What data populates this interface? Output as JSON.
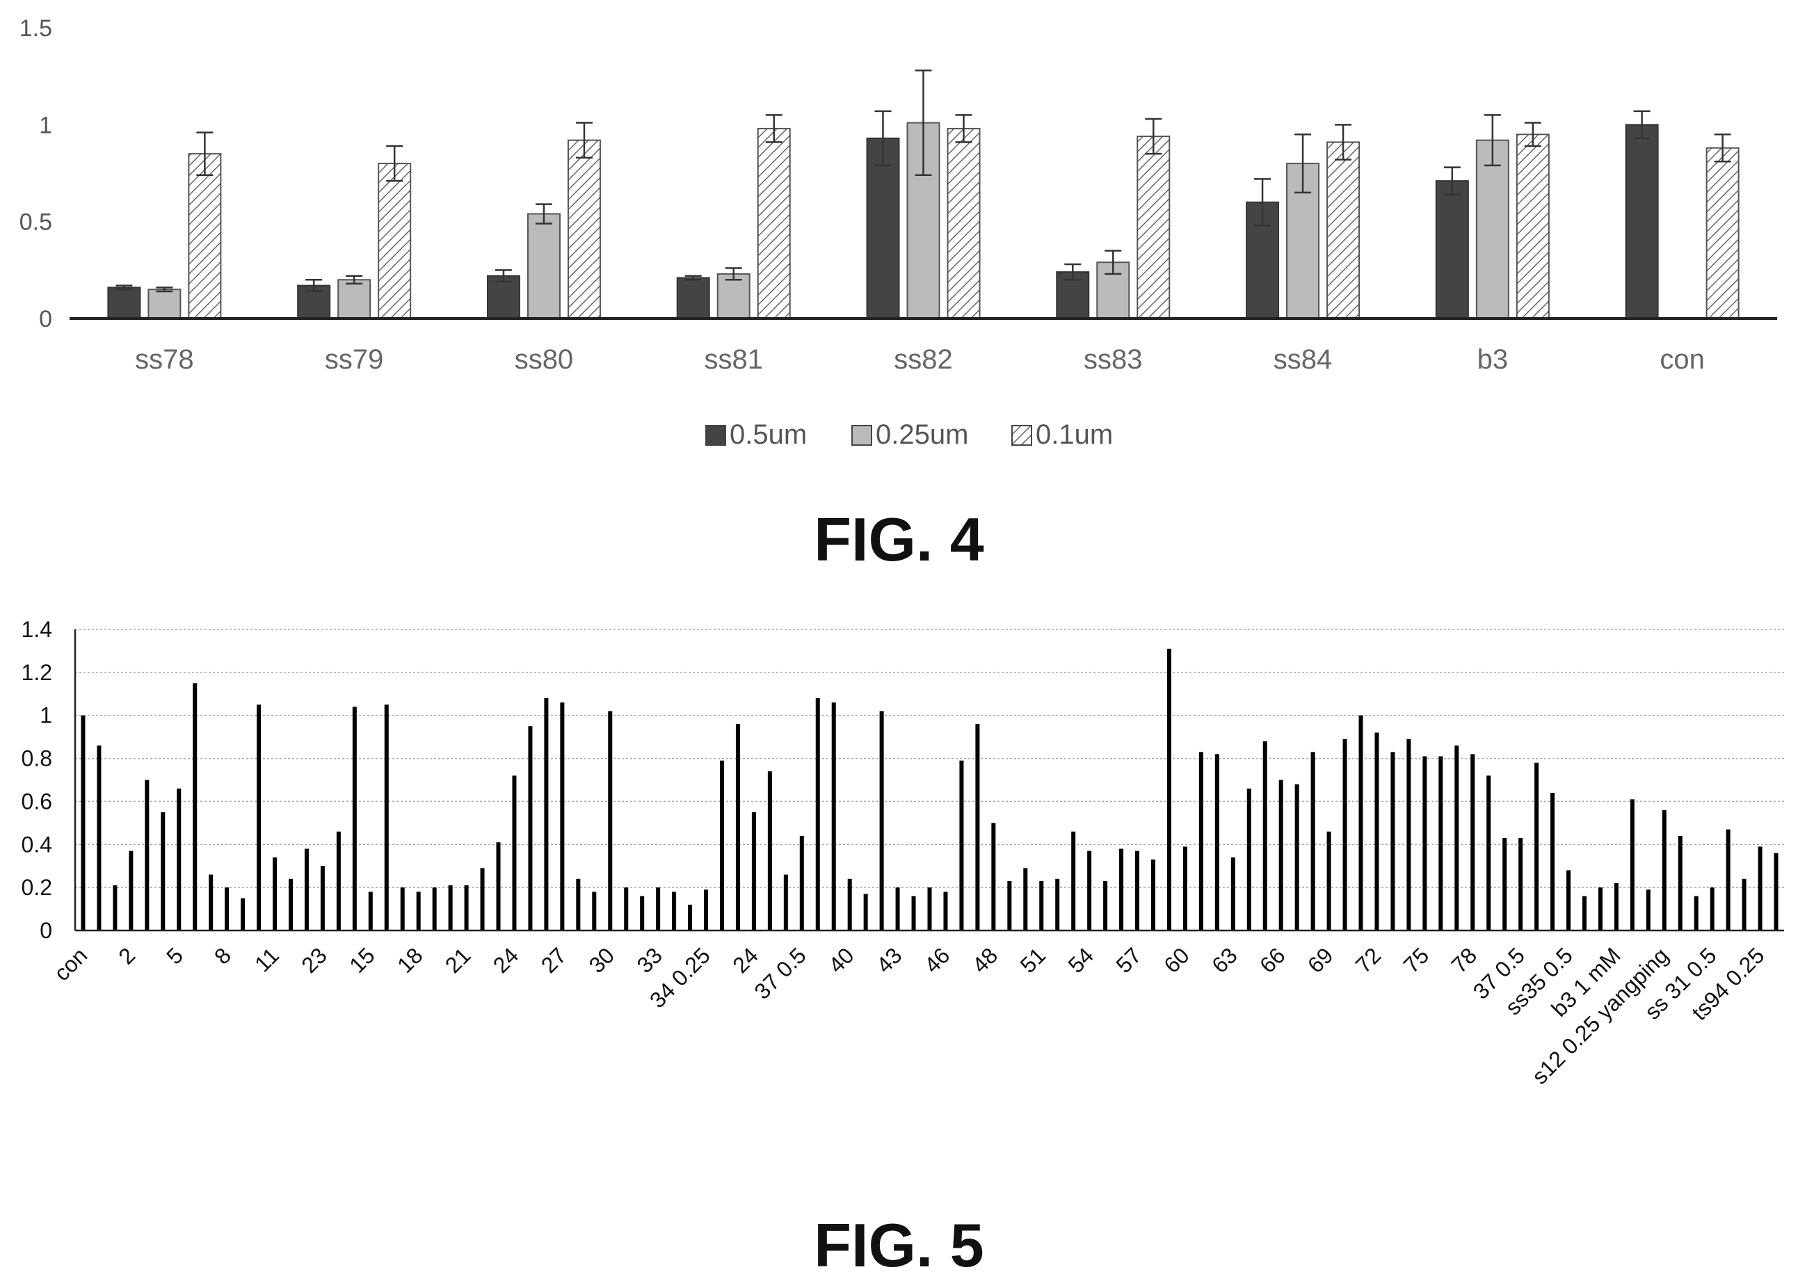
{
  "figures": {
    "fig4_caption": "FIG. 4",
    "fig5_caption": "FIG. 5"
  },
  "chart_data": [
    {
      "type": "bar",
      "title": "",
      "xlabel": "",
      "ylabel": "",
      "ylim": [
        0,
        1.5
      ],
      "yticks": [
        "0",
        "0.5",
        "1",
        "1.5"
      ],
      "grid": false,
      "legend_position": "bottom",
      "categories": [
        "ss78",
        "ss79",
        "ss80",
        "ss81",
        "ss82",
        "ss83",
        "ss84",
        "b3",
        "con"
      ],
      "series": [
        {
          "name": "0.5um",
          "color": "#444444",
          "pattern": "solid-dark",
          "values": [
            0.16,
            0.17,
            0.22,
            0.21,
            0.93,
            0.24,
            0.6,
            0.71,
            1.0
          ],
          "errors": [
            0.01,
            0.03,
            0.03,
            0.01,
            0.14,
            0.04,
            0.12,
            0.07,
            0.07
          ]
        },
        {
          "name": "0.25um",
          "color": "#bbbbbb",
          "pattern": "solid-light",
          "values": [
            0.15,
            0.2,
            0.54,
            0.23,
            1.01,
            0.29,
            0.8,
            0.92,
            null
          ],
          "errors": [
            0.01,
            0.02,
            0.05,
            0.03,
            0.27,
            0.06,
            0.15,
            0.13,
            null
          ]
        },
        {
          "name": "0.1um",
          "color": "#888888",
          "pattern": "hatched",
          "values": [
            0.85,
            0.8,
            0.92,
            0.98,
            0.98,
            0.94,
            0.91,
            0.95,
            0.88
          ],
          "errors": [
            0.11,
            0.09,
            0.09,
            0.07,
            0.07,
            0.09,
            0.09,
            0.06,
            0.07
          ]
        }
      ]
    },
    {
      "type": "bar",
      "title": "",
      "xlabel": "",
      "ylabel": "",
      "ylim": [
        0,
        1.4
      ],
      "yticks": [
        "0",
        "0.2",
        "0.4",
        "0.6",
        "0.8",
        "1",
        "1.2",
        "1.4"
      ],
      "grid": true,
      "color": "#000000",
      "tick_labels": [
        "con",
        "2",
        "5",
        "8",
        "11",
        "23",
        "15",
        "18",
        "21",
        "24",
        "27",
        "30",
        "33",
        "34 0.25",
        "24",
        "37 0.5",
        "40",
        "43",
        "46",
        "48",
        "51",
        "54",
        "57",
        "60",
        "63",
        "66",
        "69",
        "72",
        "75",
        "78",
        "37 0.5",
        "ss35  0.5",
        "b3 1 mM",
        "s12 0.25 yangping",
        "ss 31  0.5",
        "ts94 0.25"
      ],
      "tick_label_bar_index": [
        0,
        3,
        6,
        9,
        12,
        15,
        18,
        21,
        24,
        27,
        30,
        33,
        36,
        39,
        42,
        45,
        48,
        51,
        54,
        57,
        60,
        63,
        66,
        69,
        72,
        75,
        78,
        81,
        84,
        87,
        90,
        93,
        96,
        99,
        102,
        105
      ],
      "values": [
        1.0,
        0.86,
        0.21,
        0.37,
        0.7,
        0.55,
        0.66,
        1.15,
        0.26,
        0.2,
        0.15,
        1.05,
        0.34,
        0.24,
        0.38,
        0.3,
        0.46,
        1.04,
        0.18,
        1.05,
        0.2,
        0.18,
        0.2,
        0.21,
        0.21,
        0.29,
        0.41,
        0.72,
        0.95,
        1.08,
        1.06,
        0.24,
        0.18,
        1.02,
        0.2,
        0.16,
        0.2,
        0.18,
        0.12,
        0.19,
        0.79,
        0.96,
        0.55,
        0.74,
        0.26,
        0.44,
        1.08,
        1.06,
        0.24,
        0.17,
        1.02,
        0.2,
        0.16,
        0.2,
        0.18,
        0.79,
        0.96,
        0.5,
        0.23,
        0.29,
        0.23,
        0.24,
        0.46,
        0.37,
        0.23,
        0.38,
        0.37,
        0.33,
        1.31,
        0.39,
        0.83,
        0.82,
        0.34,
        0.66,
        0.88,
        0.7,
        0.68,
        0.83,
        0.46,
        0.89,
        1.0,
        0.92,
        0.83,
        0.89,
        0.81,
        0.81,
        0.86,
        0.82,
        0.72,
        0.43,
        0.43,
        0.78,
        0.64,
        0.28,
        0.16,
        0.2,
        0.22,
        0.61,
        0.19,
        0.56,
        0.44,
        0.16,
        0.2,
        0.47,
        0.24,
        0.39,
        0.36
      ]
    }
  ]
}
